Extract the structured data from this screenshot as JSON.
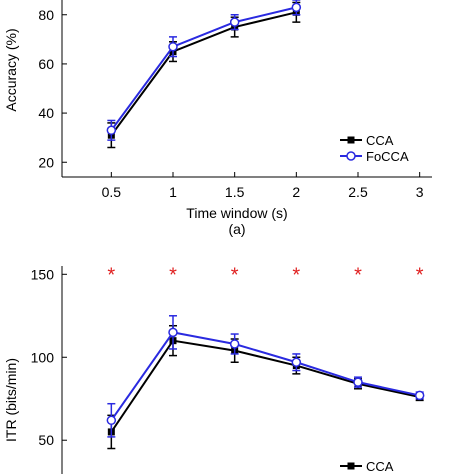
{
  "chart_data": [
    {
      "type": "line",
      "panel_label": "(a)",
      "xlabel": "Time window (s)",
      "ylabel": "Accuracy (%)",
      "x": [
        0.5,
        1,
        1.5,
        2
      ],
      "x_ticks": [
        "0.5",
        "1",
        "1.5",
        "2",
        "2.5",
        "3"
      ],
      "y_ticks": [
        "20",
        "40",
        "60",
        "80"
      ],
      "xlim": [
        0.1,
        3.1
      ],
      "ylim": [
        14,
        86
      ],
      "series": [
        {
          "name": "CCA",
          "color": "#000000",
          "marker": "square",
          "values": [
            31,
            65,
            75,
            81
          ],
          "err": [
            5,
            4,
            4,
            4
          ]
        },
        {
          "name": "FoCCA",
          "color": "#2a2ae0",
          "marker": "circle",
          "values": [
            33,
            67,
            77,
            83
          ],
          "err": [
            4,
            4,
            3,
            3
          ]
        }
      ],
      "legend_position": "bottom-right",
      "grid": false
    },
    {
      "type": "line",
      "xlabel": "",
      "ylabel": "ITR (bits/min)",
      "x": [
        0.5,
        1,
        1.5,
        2,
        2.5,
        3
      ],
      "x_ticks": [],
      "y_ticks": [
        "50",
        "100",
        "150"
      ],
      "xlim": [
        0.1,
        3.1
      ],
      "ylim": [
        20,
        155
      ],
      "series": [
        {
          "name": "CCA",
          "color": "#000000",
          "marker": "square",
          "values": [
            55,
            110,
            104,
            95,
            84,
            76
          ],
          "err": [
            10,
            9,
            7,
            5,
            3,
            2
          ]
        },
        {
          "name": "FoCCA",
          "color": "#2a2ae0",
          "marker": "circle",
          "values": [
            62,
            115,
            108,
            97,
            85,
            77
          ],
          "err": [
            10,
            10,
            6,
            5,
            3,
            2
          ]
        }
      ],
      "significance_marker": "*",
      "significance_color": "#e02020",
      "significance_y": 150,
      "legend_position": "bottom-right",
      "grid": false
    }
  ]
}
